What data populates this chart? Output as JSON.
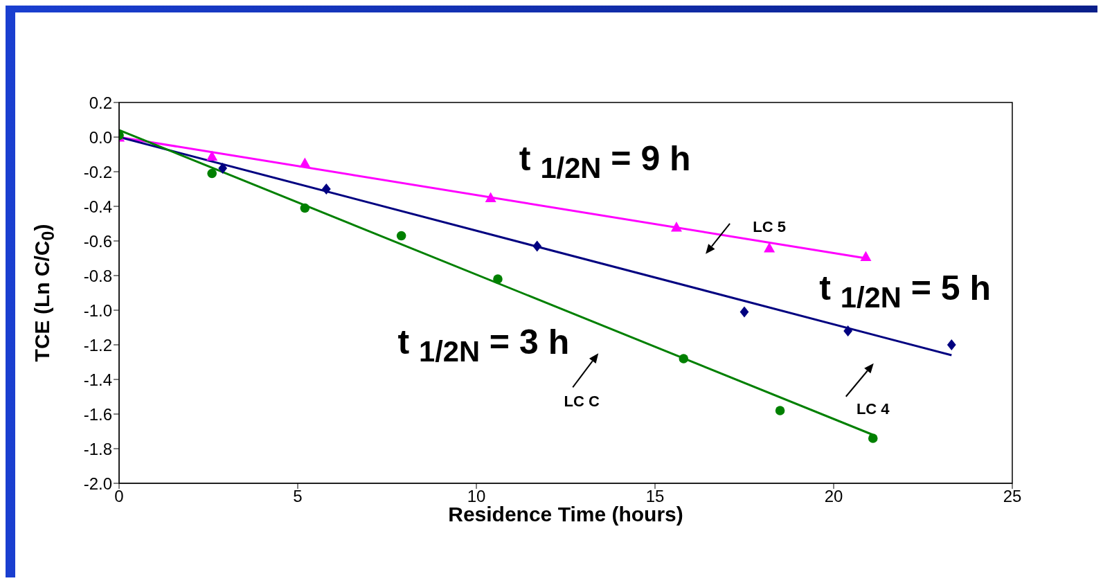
{
  "chart_data": {
    "type": "scatter",
    "xlabel": "Residence Time (hours)",
    "ylabel": "TCE (Ln C/C$_{0}$)",
    "xlim": [
      0,
      25
    ],
    "xticks": [
      0,
      5,
      10,
      15,
      20,
      25
    ],
    "ylim": [
      -2,
      0.2
    ],
    "yticks": [
      {
        "value": -2,
        "label": "-2.0"
      },
      {
        "value": -1.8,
        "label": "-1.8"
      },
      {
        "value": -1.6,
        "label": "-1.6"
      },
      {
        "value": -1.4,
        "label": "-1.4"
      },
      {
        "value": -1.2,
        "label": "-1.2"
      },
      {
        "value": -1,
        "label": "-1.0"
      },
      {
        "value": -0.8,
        "label": "-0.8"
      },
      {
        "value": -0.6,
        "label": "-0.6"
      },
      {
        "value": -0.4,
        "label": "-0.4"
      },
      {
        "value": -0.2,
        "label": "-0.2"
      },
      {
        "value": 0,
        "label": "0.0"
      },
      {
        "value": 0.2,
        "label": "0.2"
      }
    ],
    "grid": false,
    "legend": false,
    "series": [
      {
        "marker": "triangle",
        "color": "#ff00ff",
        "x": [
          0,
          2.6,
          5.2,
          10.4,
          15.6,
          18.2,
          20.9
        ],
        "values": [
          0,
          -0.11,
          -0.15,
          -0.35,
          -0.52,
          -0.64,
          -0.69
        ]
      },
      {
        "marker": "diamond",
        "color": "#000080",
        "x": [
          2.9,
          5.8,
          11.7,
          17.5,
          20.4,
          23.3
        ],
        "values": [
          -0.18,
          -0.3,
          -0.63,
          -1.01,
          -1.12,
          -1.2
        ]
      },
      {
        "marker": "circle",
        "color": "#008000",
        "x": [
          0,
          2.6,
          5.2,
          7.9,
          10.6,
          15.8,
          18.5,
          21.1
        ],
        "values": [
          0.01,
          -0.21,
          -0.41,
          -0.57,
          -0.82,
          -1.28,
          -1.58,
          -1.74
        ]
      },
      {
        "type": "line",
        "marker": "none",
        "color": "#ff00ff",
        "x": [
          0,
          20.9
        ],
        "values": [
          0,
          -0.7
        ]
      },
      {
        "type": "line",
        "marker": "none",
        "color": "#000080",
        "x": [
          0,
          23.3
        ],
        "values": [
          0,
          -1.26
        ]
      },
      {
        "type": "line",
        "marker": "none",
        "color": "#008000",
        "x": [
          0,
          21.1
        ],
        "values": [
          0.04,
          -1.72
        ]
      }
    ],
    "annotations": [
      "t $_{1/2N}$ = 9 h",
      "t $_{1/2N}$ = 5 h",
      "t $_{1/2N}$ = 3 h",
      "LC 5",
      "LC 4",
      "LC C"
    ]
  }
}
